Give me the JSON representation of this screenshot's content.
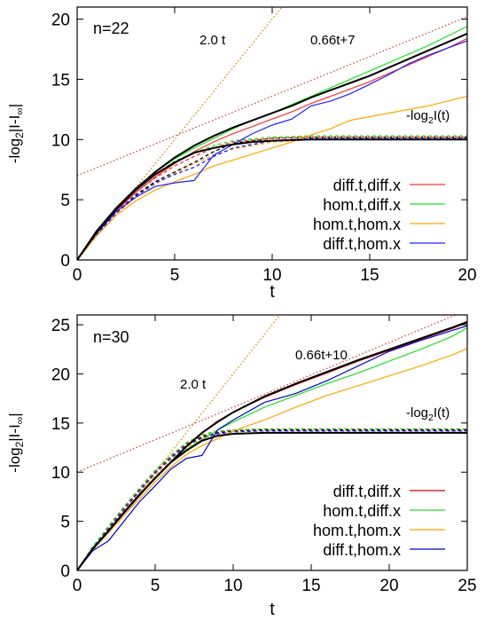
{
  "chart_data": [
    {
      "type": "line",
      "annotation_n": "n=22",
      "xlabel": "t",
      "ylabel": {
        "prefix": "-log",
        "sub": "2",
        "body": "|I-I",
        "sub2": "∞",
        "suffix": "|"
      },
      "xlim": [
        0,
        20
      ],
      "ylim": [
        0,
        21
      ],
      "xticks": [
        0,
        5,
        10,
        15,
        20
      ],
      "yticks": [
        0,
        5,
        10,
        15,
        20
      ],
      "legend_position": "bottom-right",
      "series": [
        {
          "name": "diff.t,diff.x",
          "color": "#ff3030",
          "x": [
            0,
            1,
            2,
            3,
            4,
            5,
            6,
            7,
            8,
            9,
            10,
            11,
            12,
            13,
            14,
            15,
            16,
            17,
            18,
            19,
            20
          ],
          "y": [
            0,
            2.3,
            4.1,
            5.6,
            6.9,
            8.0,
            9.0,
            9.8,
            10.5,
            11.1,
            11.7,
            12.3,
            13.0,
            13.6,
            14.2,
            14.8,
            15.5,
            16.2,
            16.9,
            17.6,
            18.4
          ]
        },
        {
          "name": "hom.t,diff.x",
          "color": "#20e020",
          "x": [
            0,
            1,
            2,
            3,
            4,
            5,
            6,
            7,
            8,
            9,
            10,
            11,
            12,
            13,
            14,
            15,
            16,
            17,
            18,
            19,
            20
          ],
          "y": [
            0,
            2.4,
            4.3,
            5.9,
            7.3,
            8.4,
            9.3,
            10.1,
            10.9,
            11.6,
            12.2,
            12.9,
            13.6,
            14.3,
            15.0,
            15.7,
            16.4,
            17.1,
            17.8,
            18.6,
            19.4
          ]
        },
        {
          "name": "hom.t,hom.x",
          "color": "#ffa500",
          "x": [
            0,
            1,
            2,
            3,
            4,
            5,
            6,
            7,
            8,
            9,
            10,
            11,
            12,
            13,
            14,
            15,
            16,
            17,
            18,
            19,
            20
          ],
          "y": [
            0,
            2.0,
            3.7,
            4.9,
            5.8,
            6.5,
            7.1,
            7.8,
            8.3,
            8.8,
            9.3,
            9.8,
            10.4,
            10.9,
            11.6,
            11.9,
            12.2,
            12.5,
            12.8,
            13.2,
            13.6
          ]
        },
        {
          "name": "diff.t,hom.x",
          "color": "#2020ff",
          "x": [
            0,
            1,
            2,
            3,
            4,
            5,
            6,
            7,
            8,
            9,
            10,
            11,
            12,
            13,
            14,
            15,
            16,
            17,
            18,
            19,
            20
          ],
          "y": [
            0,
            2.2,
            4.0,
            5.2,
            6.1,
            6.4,
            6.6,
            8.7,
            9.6,
            10.5,
            11.2,
            11.7,
            12.8,
            13.2,
            13.8,
            14.6,
            15.4,
            16.3,
            17.0,
            17.6,
            18.2
          ]
        }
      ],
      "reference_curves": [
        {
          "label": "0.66t+7",
          "color": "#cc4444",
          "style": "dotted",
          "x": [
            0,
            20
          ],
          "y": [
            7,
            20.2
          ]
        },
        {
          "label": "2.0 t",
          "color": "#cc8800",
          "style": "dotted",
          "x": [
            0,
            10.5
          ],
          "y": [
            0,
            21
          ]
        },
        {
          "label": "",
          "color": "#000000",
          "style": "solid",
          "width": 2,
          "x": [
            0,
            1,
            2,
            3,
            4,
            5,
            6,
            7,
            8,
            9,
            10,
            12,
            14,
            16,
            18,
            20
          ],
          "y": [
            0,
            2.3,
            4.2,
            5.8,
            7.1,
            8.1,
            8.9,
            9.3,
            9.6,
            9.8,
            9.9,
            10.0,
            10.0,
            10.0,
            10.0,
            10.0
          ]
        },
        {
          "label": "",
          "color": "#000000",
          "style": "solid",
          "width": 2,
          "x": [
            0,
            1,
            2,
            3,
            4,
            5,
            6,
            7,
            8,
            9,
            10,
            11,
            12,
            13,
            14,
            15,
            16,
            17,
            18,
            19,
            20
          ],
          "y": [
            0,
            2.4,
            4.3,
            5.9,
            7.3,
            8.5,
            9.5,
            10.3,
            11.0,
            11.6,
            12.2,
            12.8,
            13.5,
            14.1,
            14.7,
            15.3,
            16.0,
            16.7,
            17.4,
            18.1,
            18.8
          ]
        }
      ],
      "saturation_label": {
        "prefix": "-log",
        "sub": "2",
        "suffix": "I(t)"
      },
      "saturation_curves": [
        {
          "color": "#000000",
          "x": [
            0,
            1,
            2,
            3,
            4,
            5,
            6,
            7,
            8,
            10,
            12,
            14,
            16,
            18,
            20
          ],
          "y": [
            0,
            2.1,
            3.9,
            5.4,
            6.5,
            7.3,
            8.1,
            9.0,
            9.7,
            10.1,
            10.2,
            10.2,
            10.2,
            10.2,
            10.2
          ]
        },
        {
          "color": "#ff3030",
          "x": [
            0,
            1,
            2,
            3,
            4,
            5,
            6,
            7,
            8,
            10,
            12,
            14,
            16,
            18,
            20
          ],
          "y": [
            0,
            2.2,
            4.0,
            5.6,
            6.8,
            7.8,
            8.6,
            9.3,
            9.8,
            10.1,
            10.2,
            10.2,
            10.2,
            10.2,
            10.2
          ]
        },
        {
          "color": "#20e020",
          "x": [
            0,
            1,
            2,
            3,
            4,
            5,
            6,
            7,
            8,
            10,
            12,
            14,
            16,
            18,
            20
          ],
          "y": [
            0,
            2.3,
            4.2,
            5.8,
            7.1,
            8.2,
            8.9,
            9.5,
            9.9,
            10.2,
            10.3,
            10.3,
            10.3,
            10.3,
            10.3
          ]
        },
        {
          "color": "#ffa500",
          "x": [
            0,
            1,
            2,
            3,
            4,
            5,
            6,
            7,
            8,
            10,
            12,
            14,
            16,
            18,
            20
          ],
          "y": [
            0,
            2.0,
            3.8,
            5.2,
            6.3,
            7.2,
            8.0,
            8.7,
            9.2,
            9.8,
            10.0,
            10.1,
            10.1,
            10.1,
            10.1
          ]
        },
        {
          "color": "#2020ff",
          "x": [
            0,
            1,
            2,
            3,
            4,
            5,
            6,
            7,
            8,
            10,
            12,
            14,
            16,
            18,
            20
          ],
          "y": [
            0,
            2.1,
            3.9,
            5.3,
            6.4,
            7.1,
            7.7,
            8.6,
            9.3,
            9.9,
            10.1,
            10.1,
            10.1,
            10.1,
            10.1
          ]
        }
      ]
    },
    {
      "type": "line",
      "annotation_n": "n=30",
      "xlabel": "t",
      "ylabel": {
        "prefix": "-log",
        "sub": "2",
        "body": "|I-I",
        "sub2": "∞",
        "suffix": "|"
      },
      "xlim": [
        0,
        25
      ],
      "ylim": [
        0,
        26
      ],
      "xticks": [
        0,
        5,
        10,
        15,
        20,
        25
      ],
      "yticks": [
        0,
        5,
        10,
        15,
        20,
        25
      ],
      "legend_position": "bottom-right",
      "series": [
        {
          "name": "diff.t,diff.x",
          "color": "#cc0000",
          "x": [
            0,
            1,
            2,
            3,
            4,
            5,
            6,
            7,
            8,
            9,
            10,
            12,
            14,
            16,
            18,
            20,
            22,
            24,
            25
          ],
          "y": [
            0,
            2.2,
            3.9,
            5.8,
            7.6,
            9.4,
            11.0,
            12.6,
            14.0,
            15.2,
            16.1,
            17.6,
            18.9,
            20.1,
            21.3,
            22.4,
            23.5,
            24.6,
            25.2
          ]
        },
        {
          "name": "hom.t,diff.x",
          "color": "#20e020",
          "x": [
            0,
            1,
            2,
            3,
            4,
            5,
            6,
            7,
            8,
            9,
            10,
            12,
            14,
            16,
            18,
            20,
            22,
            24,
            25
          ],
          "y": [
            0,
            2.3,
            4.0,
            5.9,
            7.7,
            9.4,
            11.0,
            12.3,
            13.3,
            14.3,
            15.1,
            16.6,
            17.8,
            19.0,
            20.1,
            21.3,
            22.5,
            23.8,
            24.7
          ]
        },
        {
          "name": "hom.t,hom.x",
          "color": "#ffa500",
          "x": [
            0,
            1,
            2,
            3,
            4,
            5,
            6,
            7,
            8,
            9,
            10,
            12,
            14,
            16,
            18,
            20,
            22,
            24,
            25
          ],
          "y": [
            0,
            2.1,
            3.8,
            5.6,
            7.3,
            9.0,
            10.5,
            11.8,
            12.7,
            13.4,
            14.2,
            15.3,
            16.6,
            17.8,
            18.8,
            19.8,
            20.8,
            21.9,
            22.6
          ]
        },
        {
          "name": "diff.t,hom.x",
          "color": "#0000cc",
          "x": [
            0,
            1,
            2,
            3,
            4,
            5,
            6,
            7,
            8,
            9,
            10,
            12,
            14,
            16,
            18,
            20,
            22,
            24,
            25
          ],
          "y": [
            0,
            2.0,
            3.0,
            5.0,
            7.0,
            8.6,
            10.3,
            11.4,
            11.7,
            14.3,
            15.3,
            17.1,
            18.0,
            19.3,
            20.8,
            22.3,
            23.4,
            24.4,
            24.9
          ]
        }
      ],
      "reference_curves": [
        {
          "label": "0.66t+10",
          "color": "#cc4444",
          "style": "dotted",
          "x": [
            0,
            25
          ],
          "y": [
            10,
            26.5
          ]
        },
        {
          "label": "2.0 t",
          "color": "#cc8800",
          "style": "dotted",
          "x": [
            0,
            13
          ],
          "y": [
            0,
            26
          ]
        },
        {
          "label": "",
          "color": "#000000",
          "style": "solid",
          "width": 2,
          "x": [
            0,
            1,
            2,
            3,
            4,
            5,
            6,
            7,
            8,
            9,
            10,
            12,
            14,
            16,
            18,
            20,
            22,
            25
          ],
          "y": [
            0,
            2.2,
            4.0,
            5.9,
            7.7,
            9.4,
            11.0,
            12.2,
            13.2,
            13.7,
            13.9,
            14.0,
            14.0,
            14.0,
            14.0,
            14.0,
            14.0,
            14.0
          ]
        },
        {
          "label": "",
          "color": "#000000",
          "style": "solid",
          "width": 2,
          "x": [
            0,
            1,
            2,
            3,
            4,
            5,
            6,
            7,
            8,
            9,
            10,
            12,
            14,
            16,
            18,
            20,
            22,
            24,
            25
          ],
          "y": [
            0,
            2.2,
            4.0,
            5.9,
            7.7,
            9.4,
            11.0,
            12.6,
            14.0,
            15.1,
            16.1,
            17.7,
            19.0,
            20.2,
            21.4,
            22.5,
            23.6,
            24.7,
            25.3
          ]
        }
      ],
      "saturation_label": {
        "prefix": "-log",
        "sub": "2",
        "suffix": "I(t)"
      },
      "saturation_curves": [
        {
          "color": "#000000",
          "x": [
            0,
            1,
            2,
            3,
            4,
            5,
            6,
            7,
            8,
            9,
            10,
            12,
            15,
            20,
            25
          ],
          "y": [
            0,
            2.3,
            4.3,
            6.3,
            8.2,
            10.0,
            11.5,
            12.8,
            13.6,
            14.0,
            14.2,
            14.3,
            14.3,
            14.3,
            14.3
          ]
        },
        {
          "color": "#ff3030",
          "x": [
            0,
            1,
            2,
            3,
            4,
            5,
            6,
            7,
            8,
            9,
            10,
            12,
            15,
            20,
            25
          ],
          "y": [
            0,
            2.4,
            4.4,
            6.4,
            8.3,
            10.1,
            11.6,
            12.9,
            13.7,
            14.1,
            14.3,
            14.4,
            14.4,
            14.4,
            14.4
          ]
        },
        {
          "color": "#20e020",
          "x": [
            0,
            1,
            2,
            3,
            4,
            5,
            6,
            7,
            8,
            9,
            10,
            12,
            15,
            20,
            25
          ],
          "y": [
            0,
            2.4,
            4.5,
            6.5,
            8.4,
            10.2,
            11.7,
            13.0,
            13.8,
            14.2,
            14.3,
            14.4,
            14.4,
            14.4,
            14.4
          ]
        },
        {
          "color": "#ffa500",
          "x": [
            0,
            1,
            2,
            3,
            4,
            5,
            6,
            7,
            8,
            9,
            10,
            12,
            15,
            20,
            25
          ],
          "y": [
            0,
            2.2,
            4.1,
            6.0,
            7.9,
            9.7,
            11.2,
            12.5,
            13.4,
            13.9,
            14.1,
            14.2,
            14.2,
            14.2,
            14.2
          ]
        },
        {
          "color": "#2020ff",
          "x": [
            0,
            1,
            2,
            3,
            4,
            5,
            6,
            7,
            8,
            9,
            10,
            12,
            15,
            20,
            25
          ],
          "y": [
            0,
            2.3,
            4.2,
            6.2,
            8.1,
            9.9,
            11.4,
            12.7,
            13.5,
            13.9,
            14.1,
            14.2,
            14.2,
            14.2,
            14.2
          ]
        }
      ]
    }
  ]
}
